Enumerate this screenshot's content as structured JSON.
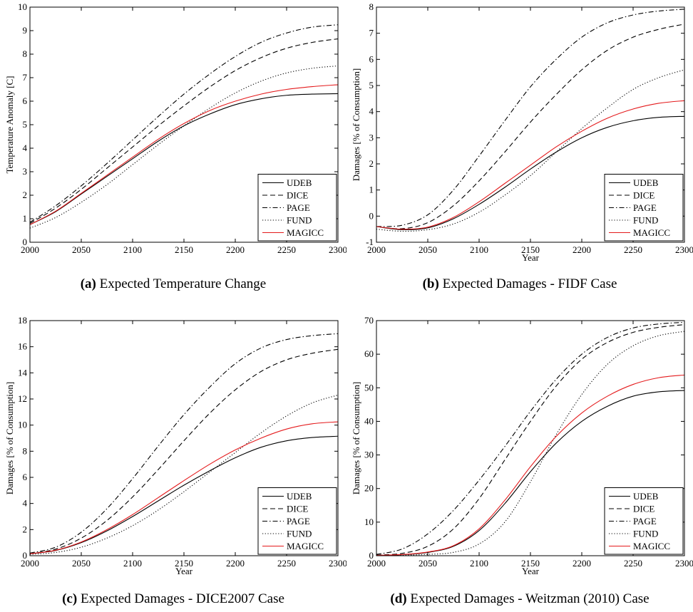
{
  "legend_styles": {
    "UDEB": {
      "color": "#000000",
      "dash": ""
    },
    "DICE": {
      "color": "#000000",
      "dash": "7,4"
    },
    "PAGE": {
      "color": "#000000",
      "dash": "7,3,1.5,3"
    },
    "FUND": {
      "color": "#000000",
      "dash": "1.2,2.5"
    },
    "MAGICC": {
      "color": "#e41a1c",
      "dash": ""
    }
  },
  "chart_data": [
    {
      "type": "line",
      "caption_tag": "(a)",
      "caption": "Expected Temperature Change",
      "xlabel": "",
      "ylabel": "Temperature Anomaly [C]",
      "xlim": [
        2000,
        2300
      ],
      "ylim": [
        0,
        10
      ],
      "xticks": [
        2000,
        2050,
        2100,
        2150,
        2200,
        2250,
        2300
      ],
      "yticks": [
        0,
        1,
        2,
        3,
        4,
        5,
        6,
        7,
        8,
        9,
        10
      ],
      "legend_position": "bottom-right",
      "x": [
        2000,
        2025,
        2050,
        2075,
        2100,
        2125,
        2150,
        2175,
        2200,
        2225,
        2250,
        2275,
        2300
      ],
      "series": [
        {
          "name": "UDEB",
          "values": [
            0.75,
            1.3,
            2.05,
            2.8,
            3.55,
            4.3,
            4.95,
            5.45,
            5.85,
            6.1,
            6.25,
            6.3,
            6.32
          ]
        },
        {
          "name": "DICE",
          "values": [
            0.8,
            1.45,
            2.25,
            3.15,
            4.05,
            4.95,
            5.8,
            6.6,
            7.3,
            7.85,
            8.25,
            8.5,
            8.65
          ]
        },
        {
          "name": "PAGE",
          "values": [
            0.85,
            1.55,
            2.4,
            3.35,
            4.35,
            5.35,
            6.3,
            7.15,
            7.9,
            8.5,
            8.9,
            9.15,
            9.25
          ]
        },
        {
          "name": "FUND",
          "values": [
            0.6,
            1.05,
            1.7,
            2.45,
            3.3,
            4.15,
            4.95,
            5.7,
            6.35,
            6.85,
            7.2,
            7.4,
            7.5
          ]
        },
        {
          "name": "MAGICC",
          "values": [
            0.75,
            1.32,
            2.08,
            2.85,
            3.62,
            4.38,
            5.05,
            5.6,
            6.0,
            6.3,
            6.5,
            6.62,
            6.7
          ]
        }
      ]
    },
    {
      "type": "line",
      "caption_tag": "(b)",
      "caption": "Expected Damages - FIDF Case",
      "xlabel": "Year",
      "ylabel": "Damages [% of Consumption]",
      "xlim": [
        2000,
        2300
      ],
      "ylim": [
        -1,
        8
      ],
      "xticks": [
        2000,
        2050,
        2100,
        2150,
        2200,
        2250,
        2300
      ],
      "yticks": [
        -1,
        0,
        1,
        2,
        3,
        4,
        5,
        6,
        7,
        8
      ],
      "legend_position": "bottom-right",
      "x": [
        2000,
        2025,
        2050,
        2075,
        2100,
        2125,
        2150,
        2175,
        2200,
        2225,
        2250,
        2275,
        2300
      ],
      "series": [
        {
          "name": "UDEB",
          "values": [
            -0.4,
            -0.52,
            -0.45,
            -0.1,
            0.45,
            1.1,
            1.8,
            2.45,
            3.0,
            3.4,
            3.65,
            3.78,
            3.82
          ]
        },
        {
          "name": "DICE",
          "values": [
            -0.4,
            -0.48,
            -0.25,
            0.4,
            1.35,
            2.45,
            3.6,
            4.65,
            5.6,
            6.35,
            6.85,
            7.15,
            7.35
          ]
        },
        {
          "name": "PAGE",
          "values": [
            -0.4,
            -0.35,
            0.05,
            1.0,
            2.3,
            3.65,
            4.95,
            6.0,
            6.85,
            7.4,
            7.7,
            7.85,
            7.92
          ]
        },
        {
          "name": "FUND",
          "values": [
            -0.5,
            -0.58,
            -0.52,
            -0.3,
            0.15,
            0.8,
            1.55,
            2.45,
            3.35,
            4.15,
            4.85,
            5.3,
            5.6
          ]
        },
        {
          "name": "MAGICC",
          "values": [
            -0.4,
            -0.5,
            -0.42,
            -0.05,
            0.55,
            1.25,
            1.95,
            2.65,
            3.25,
            3.75,
            4.1,
            4.32,
            4.42
          ]
        }
      ]
    },
    {
      "type": "line",
      "caption_tag": "(c)",
      "caption": "Expected Damages - DICE2007 Case",
      "xlabel": "Year",
      "ylabel": "Damages [% of Consumption]",
      "xlim": [
        2000,
        2300
      ],
      "ylim": [
        0,
        18
      ],
      "xticks": [
        2000,
        2050,
        2100,
        2150,
        2200,
        2250,
        2300
      ],
      "yticks": [
        0,
        2,
        4,
        6,
        8,
        10,
        12,
        14,
        16,
        18
      ],
      "legend_position": "bottom-right",
      "x": [
        2000,
        2025,
        2050,
        2075,
        2100,
        2125,
        2150,
        2175,
        2200,
        2225,
        2250,
        2275,
        2300
      ],
      "series": [
        {
          "name": "UDEB",
          "values": [
            0.15,
            0.4,
            1.0,
            1.9,
            3.0,
            4.2,
            5.4,
            6.5,
            7.5,
            8.3,
            8.8,
            9.05,
            9.15
          ]
        },
        {
          "name": "DICE",
          "values": [
            0.15,
            0.5,
            1.35,
            2.7,
            4.5,
            6.6,
            8.8,
            10.9,
            12.7,
            14.1,
            15.0,
            15.5,
            15.8
          ]
        },
        {
          "name": "PAGE",
          "values": [
            0.2,
            0.65,
            1.8,
            3.6,
            5.9,
            8.4,
            10.8,
            12.9,
            14.7,
            15.9,
            16.55,
            16.85,
            17.0
          ]
        },
        {
          "name": "FUND",
          "values": [
            0.1,
            0.25,
            0.65,
            1.35,
            2.3,
            3.5,
            4.9,
            6.4,
            7.9,
            9.4,
            10.7,
            11.7,
            12.3
          ]
        },
        {
          "name": "MAGICC",
          "values": [
            0.15,
            0.42,
            1.05,
            2.0,
            3.15,
            4.45,
            5.75,
            7.0,
            8.1,
            9.0,
            9.7,
            10.1,
            10.25
          ]
        }
      ]
    },
    {
      "type": "line",
      "caption_tag": "(d)",
      "caption": "Expected Damages - Weitzman (2010) Case",
      "xlabel": "Year",
      "ylabel": "Damages [% of Consumption]",
      "xlim": [
        2000,
        2300
      ],
      "ylim": [
        0,
        70
      ],
      "xticks": [
        2000,
        2050,
        2100,
        2150,
        2200,
        2250,
        2300
      ],
      "yticks": [
        0,
        10,
        20,
        30,
        40,
        50,
        60,
        70
      ],
      "legend_position": "bottom-right",
      "x": [
        2000,
        2025,
        2050,
        2075,
        2100,
        2125,
        2150,
        2175,
        2200,
        2225,
        2250,
        2275,
        2300
      ],
      "series": [
        {
          "name": "UDEB",
          "values": [
            0.1,
            0.3,
            1.0,
            2.8,
            7.5,
            15.5,
            25.0,
            33.5,
            40.0,
            44.5,
            47.5,
            48.8,
            49.2
          ]
        },
        {
          "name": "DICE",
          "values": [
            0.2,
            0.7,
            2.8,
            8.0,
            17.0,
            28.5,
            40.0,
            50.5,
            58.5,
            63.5,
            66.5,
            68.0,
            68.8
          ]
        },
        {
          "name": "PAGE",
          "values": [
            0.4,
            2.0,
            6.5,
            13.5,
            22.5,
            32.5,
            43.0,
            52.5,
            60.0,
            65.0,
            67.8,
            69.0,
            69.5
          ]
        },
        {
          "name": "FUND",
          "values": [
            0.1,
            0.15,
            0.4,
            1.0,
            3.5,
            10.0,
            22.0,
            36.0,
            48.0,
            57.0,
            62.5,
            65.5,
            66.8
          ]
        },
        {
          "name": "MAGICC",
          "values": [
            0.1,
            0.35,
            1.1,
            3.0,
            8.0,
            16.5,
            26.5,
            35.5,
            42.5,
            47.5,
            51.0,
            53.0,
            53.8
          ]
        }
      ]
    }
  ]
}
